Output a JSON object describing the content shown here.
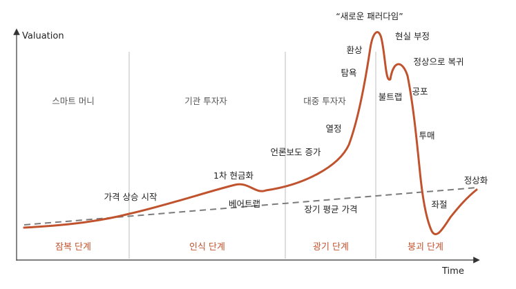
{
  "axes": {
    "y_label": "Valuation",
    "x_label": "Time"
  },
  "regions": [
    "스마트 머니",
    "기관 투자자",
    "대중 투자자"
  ],
  "phases": [
    "잠복 단계",
    "인식 단계",
    "광기 단계",
    "붕괴 단계"
  ],
  "annotations": {
    "new_paradigm": "“새로운 패러다임”",
    "price_rise_start": "가격 상승 시작",
    "first_cashing": "1차 현금화",
    "bear_trap": "베어트랩",
    "media_attention": "언론보도 증가",
    "enthusiasm": "열정",
    "greed": "탐욕",
    "delusion": "환상",
    "denial": "현실 부정",
    "bull_trap": "불트랩",
    "return_to_normal": "정상으로 복귀",
    "fear": "공포",
    "capitulation": "투매",
    "despair": "좌절",
    "normalization": "정상화",
    "long_term_mean": "장기 평균 가격"
  },
  "colors": {
    "curve": "#c0522d",
    "phase_text": "#c0522d",
    "mean_line": "#7a7a7a",
    "divider": "#bdbdbd",
    "axis": "#333333"
  }
}
